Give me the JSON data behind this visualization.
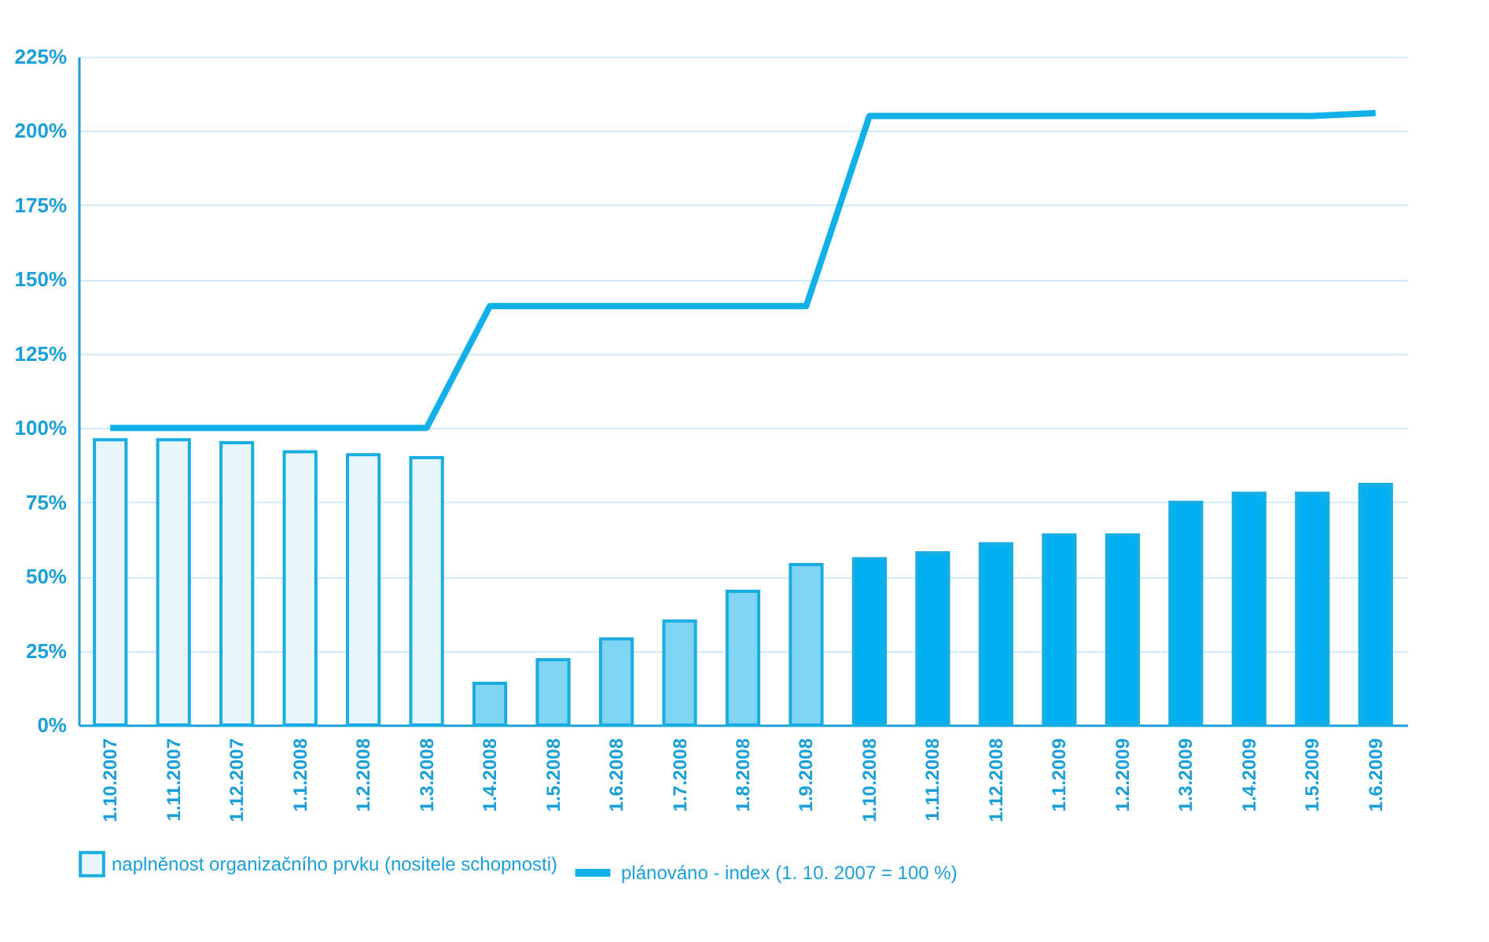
{
  "chart_data": {
    "type": "bar",
    "categories": [
      "1.10.2007",
      "1.11.2007",
      "1.12.2007",
      "1.1.2008",
      "1.2.2008",
      "1.3.2008",
      "1.4.2008",
      "1.5.2008",
      "1.6.2008",
      "1.7.2008",
      "1.8.2008",
      "1.9.2008",
      "1.10.2008",
      "1.11.2008",
      "1.12.2008",
      "1.1.2009",
      "1.2.2009",
      "1.3.2009",
      "1.4.2009",
      "1.5.2009",
      "1.6.2009"
    ],
    "series": [
      {
        "name": "naplněnost organizačního prvku (nositele schopnosti)",
        "color": "#1aaee0",
        "colors": [
          "#e8f6fc",
          "#e8f6fc",
          "#e8f6fc",
          "#e8f6fc",
          "#e8f6fc",
          "#e8f6fc",
          "#80d4f4",
          "#80d4f4",
          "#80d4f4",
          "#80d4f4",
          "#80d4f4",
          "#80d4f4",
          "#00b0f0",
          "#00b0f0",
          "#00b0f0",
          "#00b0f0",
          "#00b0f0",
          "#00b0f0",
          "#00b0f0",
          "#00b0f0",
          "#00b0f0"
        ],
        "values": [
          96,
          96,
          95,
          92,
          91,
          90,
          14,
          22,
          29,
          35,
          45,
          54,
          56,
          58,
          61,
          64,
          64,
          75,
          78,
          78,
          81
        ]
      },
      {
        "name": "plánováno - index (1. 10. 2007 = 100 %)",
        "type": "line",
        "color": "#12b0e8",
        "values": [
          100,
          100,
          100,
          100,
          100,
          100,
          141,
          141,
          141,
          141,
          141,
          141,
          205,
          205,
          205,
          205,
          205,
          205,
          205,
          205,
          206
        ]
      }
    ],
    "ylim": [
      0,
      225
    ],
    "yticks": [
      {
        "value": 0,
        "label": "0%"
      },
      {
        "value": 25,
        "label": "25%"
      },
      {
        "value": 50,
        "label": "50%"
      },
      {
        "value": 75,
        "label": "75%"
      },
      {
        "value": 100,
        "label": "100%"
      },
      {
        "value": 125,
        "label": "125%"
      },
      {
        "value": 150,
        "label": "150%"
      },
      {
        "value": 175,
        "label": "175%"
      },
      {
        "value": 200,
        "label": "200%"
      },
      {
        "value": 225,
        "label": "225%"
      }
    ],
    "grid": "y",
    "legend": "bottom",
    "line_style": "solid",
    "marker": "none"
  }
}
